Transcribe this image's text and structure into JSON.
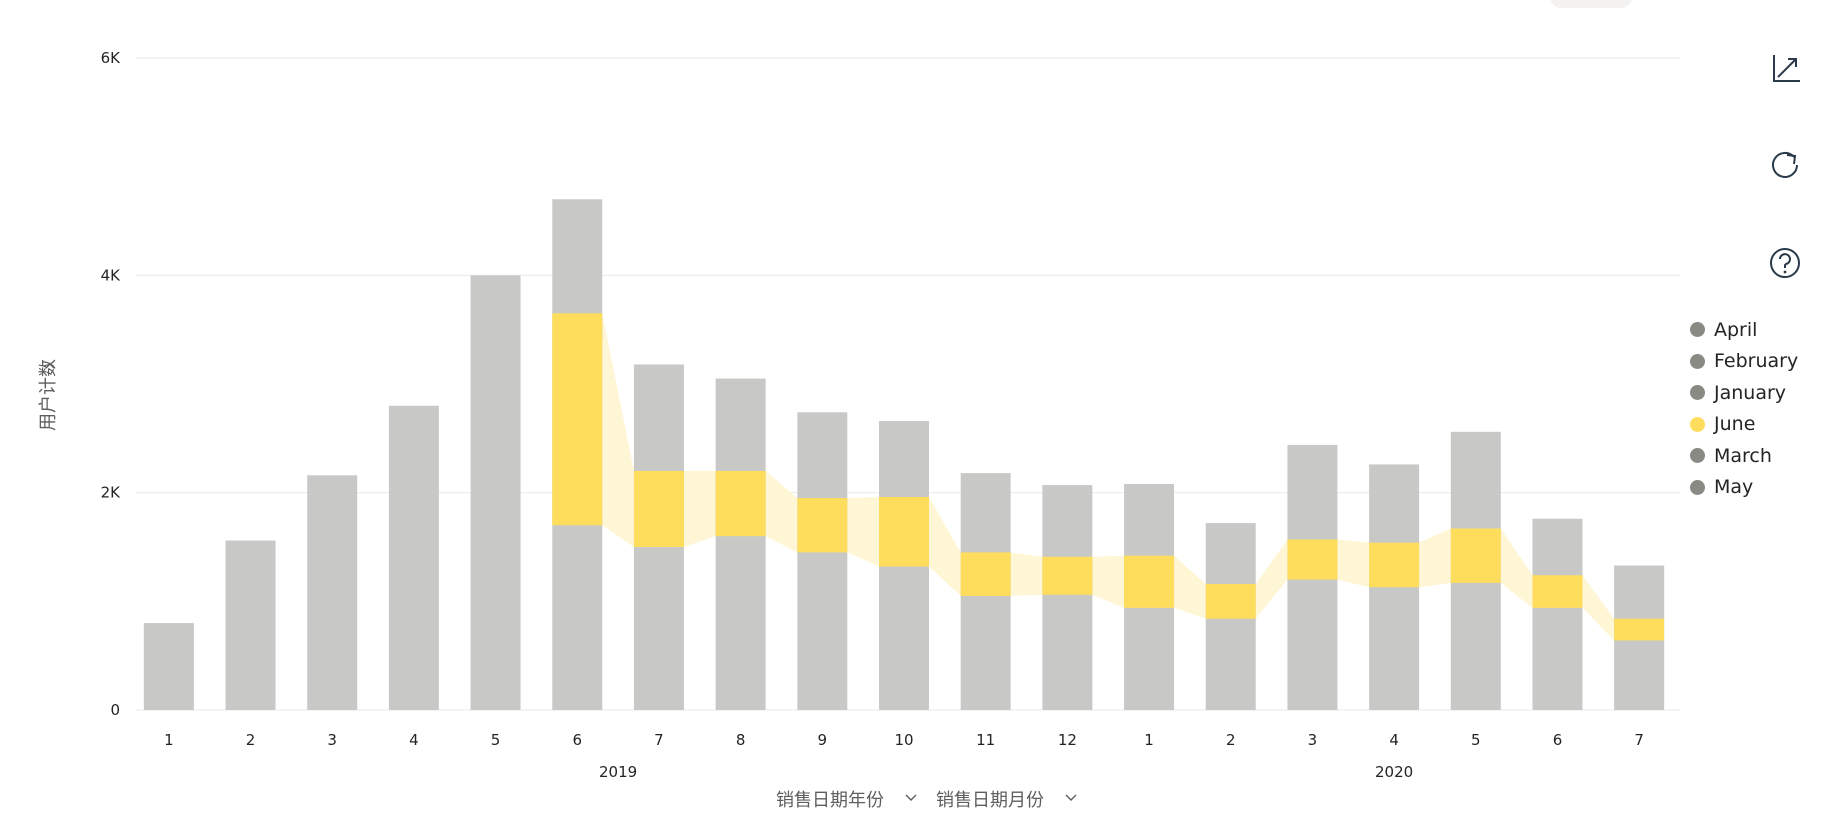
{
  "chart_data": {
    "type": "bar",
    "stacked": true,
    "title": "",
    "ylabel": "用户计数",
    "ylim": [
      0,
      6000
    ],
    "yticks": [
      {
        "value": 0,
        "label": "0"
      },
      {
        "value": 2000,
        "label": "2K"
      },
      {
        "value": 4000,
        "label": "4K"
      },
      {
        "value": 6000,
        "label": "6K"
      }
    ],
    "grid": true,
    "x_groups": [
      {
        "label": "2019",
        "months": [
          "1",
          "2",
          "3",
          "4",
          "5",
          "6",
          "7",
          "8",
          "9",
          "10",
          "11",
          "12"
        ]
      },
      {
        "label": "2020",
        "months": [
          "1",
          "2",
          "3",
          "4",
          "5",
          "6",
          "7"
        ]
      }
    ],
    "categories": [
      "2019-1",
      "2019-2",
      "2019-3",
      "2019-4",
      "2019-5",
      "2019-6",
      "2019-7",
      "2019-8",
      "2019-9",
      "2019-10",
      "2019-11",
      "2019-12",
      "2020-1",
      "2020-2",
      "2020-3",
      "2020-4",
      "2020-5",
      "2020-6",
      "2020-7"
    ],
    "totals": [
      800,
      1560,
      2160,
      2800,
      4000,
      4700,
      3180,
      3050,
      2740,
      2660,
      2180,
      2070,
      2080,
      1720,
      2440,
      2260,
      2560,
      1760,
      1330
    ],
    "highlight": {
      "name": "June",
      "lower": [
        null,
        null,
        null,
        null,
        null,
        1700,
        1500,
        1600,
        1450,
        1320,
        1050,
        1060,
        940,
        840,
        1200,
        1130,
        1170,
        940,
        640
      ],
      "upper": [
        null,
        null,
        null,
        null,
        null,
        3650,
        2200,
        2200,
        1950,
        1960,
        1450,
        1410,
        1420,
        1160,
        1570,
        1540,
        1670,
        1240,
        840
      ]
    },
    "xaxis_fields": [
      {
        "label": "销售日期年份",
        "icon": "chevron-down-icon"
      },
      {
        "label": "销售日期月份",
        "icon": "chevron-down-icon"
      }
    ],
    "legend": {
      "position": "right",
      "entries": [
        {
          "name": "April",
          "color": "#8a8a85"
        },
        {
          "name": "February",
          "color": "#8a8a85"
        },
        {
          "name": "January",
          "color": "#8a8a85"
        },
        {
          "name": "June",
          "color": "#ffdd5c"
        },
        {
          "name": "March",
          "color": "#8a8a85"
        },
        {
          "name": "May",
          "color": "#8a8a85"
        }
      ]
    },
    "colors": {
      "bar": "#c8c9c7",
      "highlight": "#ffdd5c",
      "ribbon": "#fff6d6",
      "grid": "#eaeaea"
    }
  },
  "toolbar": {
    "items": [
      {
        "name": "axis-icon"
      },
      {
        "name": "refresh-icon"
      },
      {
        "name": "help-icon"
      }
    ]
  }
}
